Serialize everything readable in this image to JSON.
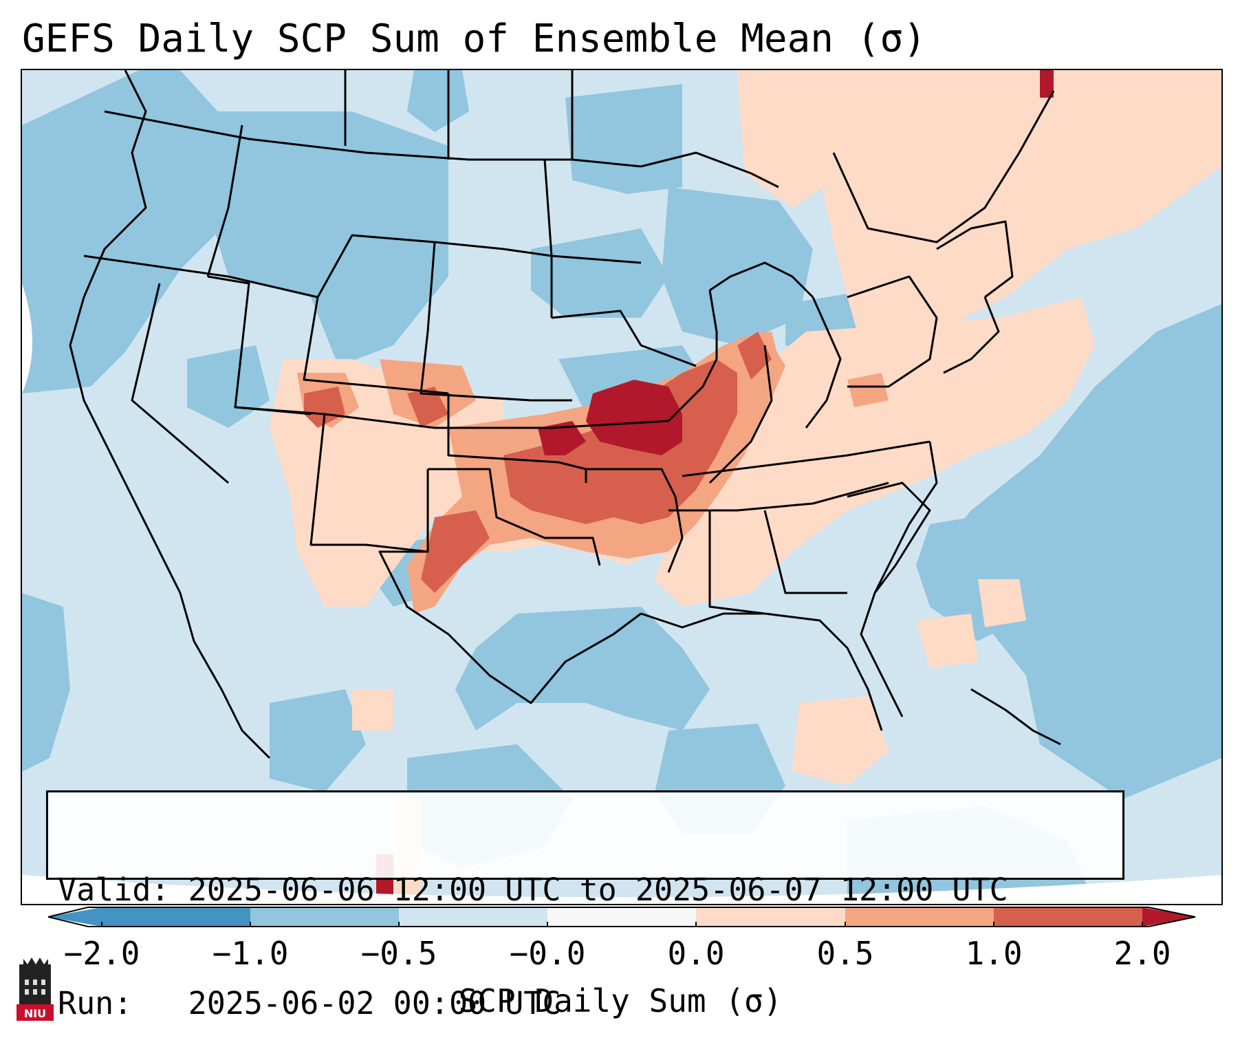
{
  "title": "GEFS Daily SCP Sum of Ensemble Mean (σ)",
  "info": {
    "valid_line": "Valid: 2025-06-06 12:00 UTC to 2025-06-07 12:00 UTC",
    "run_line": "Run:   2025-06-02 00:00 UTC"
  },
  "colorbar": {
    "label": "SCP Daily Sum (σ)",
    "ticks": [
      "−2.0",
      "−1.0",
      "−0.5",
      "−0.0",
      "0.0",
      "0.5",
      "1.0",
      "2.0"
    ],
    "extend": "both",
    "colors": [
      "#4393c3",
      "#92c5de",
      "#d1e5f0",
      "#f7f7f7",
      "#fddbc7",
      "#f4a582",
      "#d6604d",
      "#b2182b"
    ]
  },
  "legend": {
    "palette": {
      "strong_negative": "#4393c3",
      "moderate_negative": "#92c5de",
      "weak_negative": "#d1e5f0",
      "weak_positive": "#fddbc7",
      "moderate_positive": "#f4a582",
      "strong_positive": "#d6604d",
      "extreme_positive": "#b2182b"
    },
    "state_borders_color": "#000000",
    "background_color": "#ffffff"
  },
  "logo": {
    "text": "NIU",
    "icon": "niu-tower-logo-icon"
  }
}
